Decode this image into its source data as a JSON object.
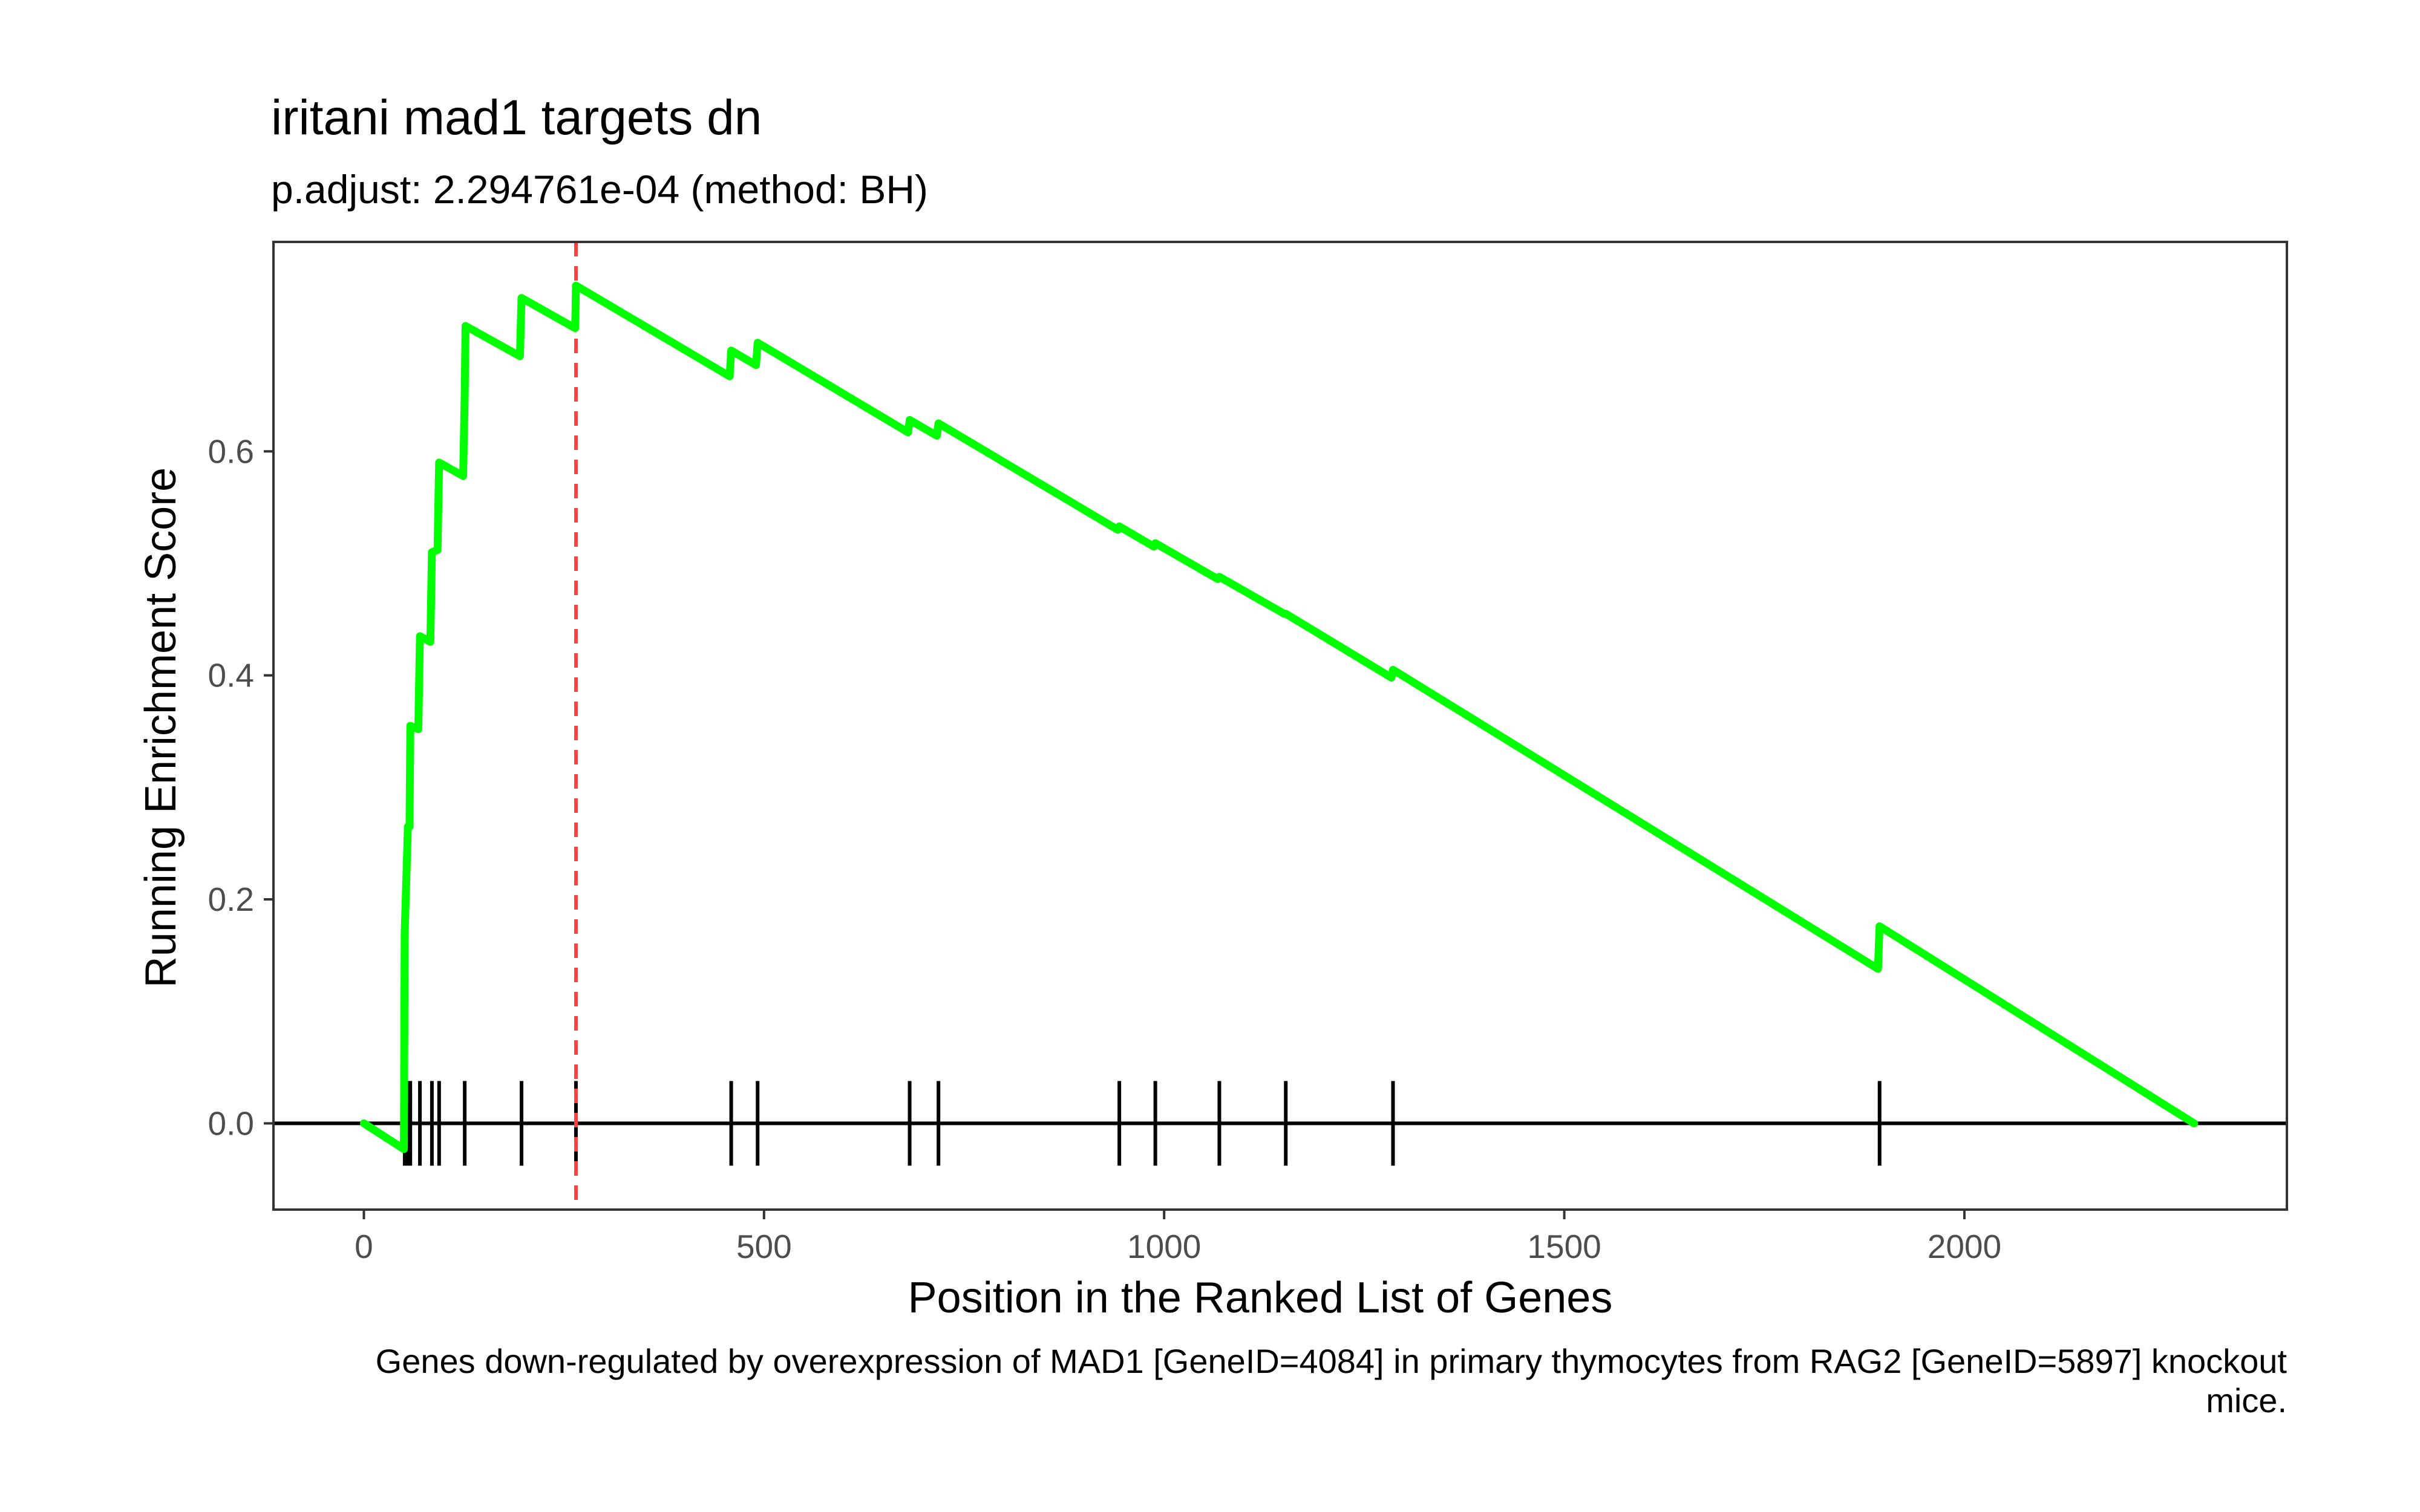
{
  "chart_data": {
    "type": "line",
    "title": "iritani mad1 targets dn",
    "subtitle": "p.adjust: 2.294761e-04 (method: BH)",
    "xlabel": "Position in the Ranked List of Genes",
    "ylabel": "Running Enrichment Score",
    "caption_lines": [
      "Genes down-regulated by overexpression of MAD1 [GeneID=4084] in primary thymocytes from RAG2 [GeneID=5897] knockout",
      "mice."
    ],
    "xlim": [
      -113,
      2403
    ],
    "ylim": [
      -0.077,
      0.787
    ],
    "x_ticks": [
      0,
      500,
      1000,
      1500,
      2000
    ],
    "x_tick_labels": [
      "0",
      "500",
      "1000",
      "1500",
      "2000"
    ],
    "y_ticks": [
      0.0,
      0.2,
      0.4,
      0.6
    ],
    "y_tick_labels": [
      "0.0",
      "0.2",
      "0.4",
      "0.6"
    ],
    "grid": false,
    "legend": "none",
    "colors": {
      "running_score": "#00ff00",
      "hits": "#000000",
      "max_line": "#ff4040",
      "zero_line": "#000000",
      "axis_text": "#4d4d4d",
      "panel_border": "#333333"
    },
    "max_es_position": 265,
    "series": [
      {
        "values": [
          [
            0,
            0.0
          ],
          [
            50,
            -0.023
          ],
          [
            51,
            0.17
          ],
          [
            55,
            0.265
          ],
          [
            57,
            0.265
          ],
          [
            58,
            0.355
          ],
          [
            68,
            0.352
          ],
          [
            70,
            0.435
          ],
          [
            83,
            0.43
          ],
          [
            85,
            0.51
          ],
          [
            92,
            0.512
          ],
          [
            94,
            0.59
          ],
          [
            124,
            0.578
          ],
          [
            126,
            0.65
          ],
          [
            127,
            0.712
          ],
          [
            195,
            0.685
          ],
          [
            197,
            0.737
          ],
          [
            264,
            0.71
          ],
          [
            265,
            0.748
          ],
          [
            457,
            0.667
          ],
          [
            459,
            0.69
          ],
          [
            490,
            0.677
          ],
          [
            492,
            0.697
          ],
          [
            680,
            0.617
          ],
          [
            682,
            0.628
          ],
          [
            716,
            0.614
          ],
          [
            718,
            0.625
          ],
          [
            942,
            0.53
          ],
          [
            944,
            0.533
          ],
          [
            987,
            0.515
          ],
          [
            989,
            0.518
          ],
          [
            1067,
            0.486
          ],
          [
            1069,
            0.488
          ],
          [
            1150,
            0.455
          ],
          [
            1152,
            0.455
          ],
          [
            1284,
            0.398
          ],
          [
            1286,
            0.405
          ],
          [
            1892,
            0.138
          ],
          [
            1894,
            0.176
          ],
          [
            2287,
            0.0
          ]
        ]
      }
    ],
    "hit_positions": [
      51,
      55,
      58,
      70,
      85,
      94,
      126,
      197,
      265,
      459,
      492,
      682,
      718,
      944,
      989,
      1069,
      1152,
      1286,
      1894
    ]
  }
}
